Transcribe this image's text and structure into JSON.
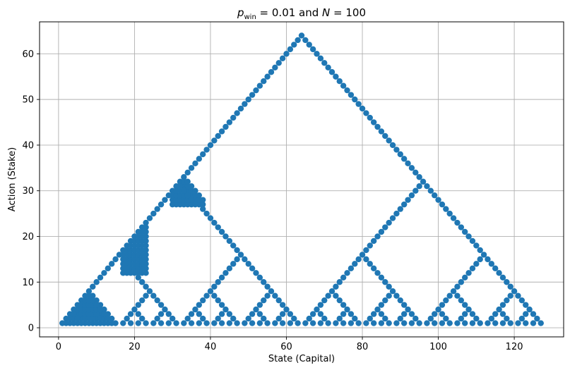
{
  "chart_data": {
    "type": "scatter",
    "title": "$p_{\\mathrm{win}} = 0.01$ and $N = 100$",
    "title_parts": {
      "p": "p",
      "sub": "win",
      "rest": " = 0.01 and ",
      "n": "N",
      "rest2": " = 100"
    },
    "xlabel": "State (Capital)",
    "ylabel": "Action (Stake)",
    "xlim": [
      -5,
      133
    ],
    "ylim": [
      -2,
      67
    ],
    "xticks": [
      0,
      20,
      40,
      60,
      80,
      100,
      120
    ],
    "yticks": [
      0,
      10,
      20,
      30,
      40,
      50,
      60
    ],
    "grid": true,
    "marker_color": "#1f77b4",
    "marker": "circle",
    "series": [
      {
        "description": "Optimal stake for each capital state; for every state s in 1..127 the plotted stakes are the values a in 1..min(s, 128-s) that are multiples of the largest power of two dividing s, together with reflected tent points around each dyadic peak.",
        "x_min": 1,
        "x_max": 127,
        "peak_state": 64,
        "peak_stake": 64
      }
    ]
  }
}
